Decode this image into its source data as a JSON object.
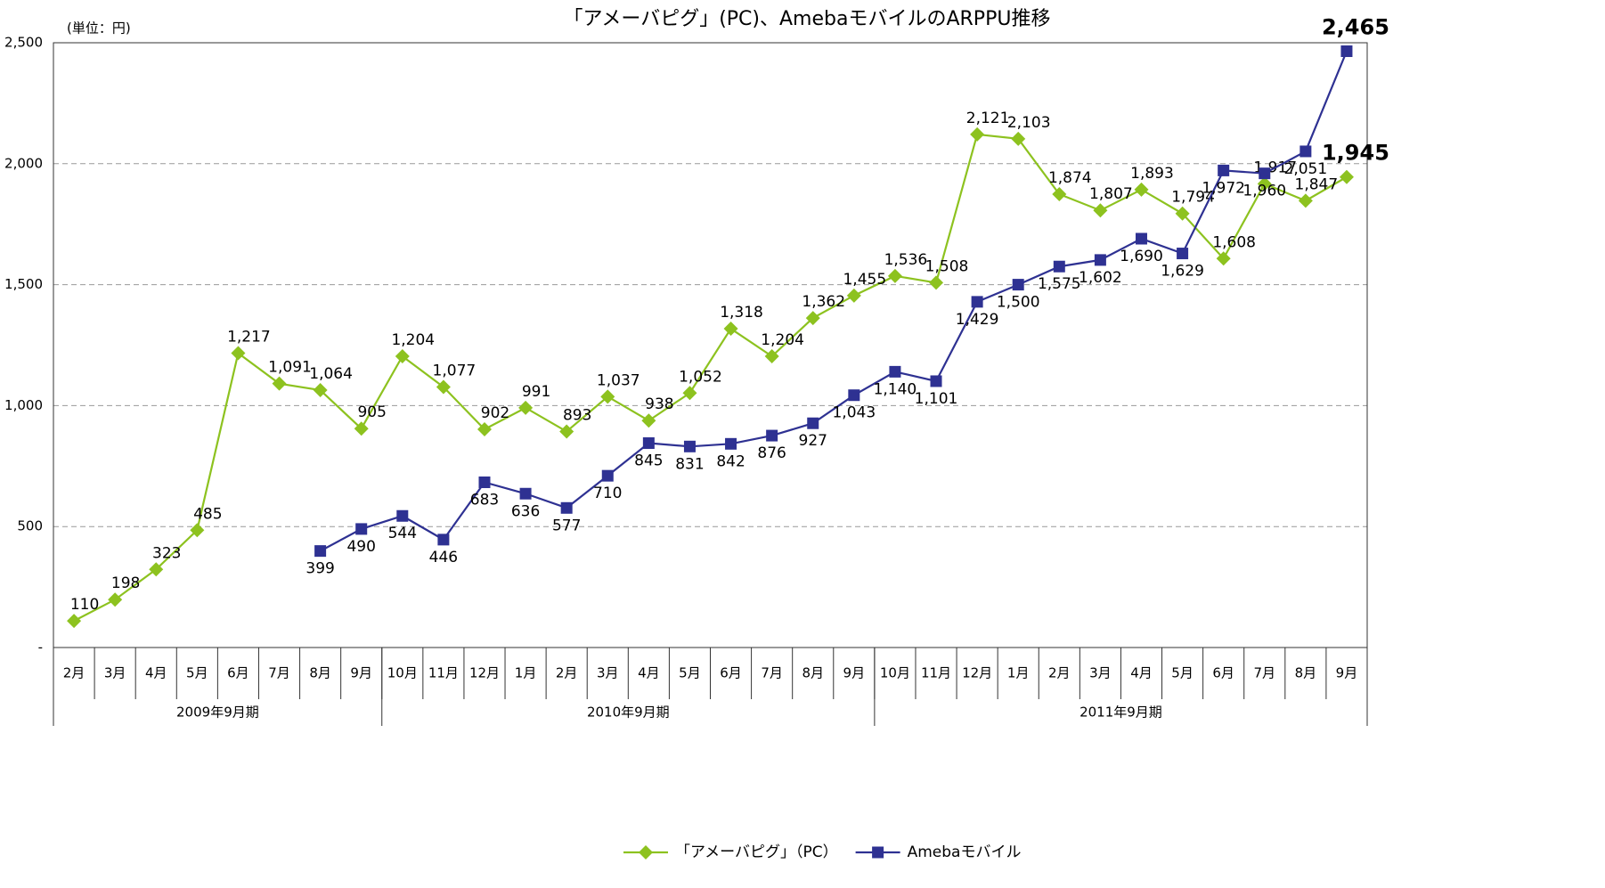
{
  "chart_data": {
    "type": "line",
    "title": "「アメーバピグ」(PC)、AmebaモバイルのARPPU推移",
    "unit_label": "(単位：円)",
    "categories": [
      "2月",
      "3月",
      "4月",
      "5月",
      "6月",
      "7月",
      "8月",
      "9月",
      "10月",
      "11月",
      "12月",
      "1月",
      "2月",
      "3月",
      "4月",
      "5月",
      "6月",
      "7月",
      "8月",
      "9月",
      "10月",
      "11月",
      "12月",
      "1月",
      "2月",
      "3月",
      "4月",
      "5月",
      "6月",
      "7月",
      "8月",
      "9月"
    ],
    "groups": [
      {
        "label": "2009年9月期",
        "count": 8
      },
      {
        "label": "2010年9月期",
        "count": 12
      },
      {
        "label": "2011年9月期",
        "count": 12
      }
    ],
    "series": [
      {
        "name": "「アメーバピグ」（PC）",
        "color": "#8dc21f",
        "marker": "diamond",
        "values": [
          110,
          198,
          323,
          485,
          1217,
          1091,
          1064,
          905,
          1204,
          1077,
          902,
          991,
          893,
          1037,
          938,
          1052,
          1318,
          1204,
          1362,
          1455,
          1536,
          1508,
          2121,
          2103,
          1874,
          1807,
          1893,
          1794,
          1608,
          1917,
          1847,
          1945
        ],
        "value_labels": [
          "110",
          "198",
          "323",
          "485",
          "1,217",
          "1,091",
          "1,064",
          "905",
          "1,204",
          "1,077",
          "902",
          "991",
          "893",
          "1,037",
          "938",
          "1,052",
          "1,318",
          "1,204",
          "1,362",
          "1,455",
          "1,536",
          "1,508",
          "2,121",
          "2,103",
          "1,874",
          "1,807",
          "1,893",
          "1,794",
          "1,608",
          "1,917",
          "1,847",
          "1,945"
        ]
      },
      {
        "name": "Amebaモバイル",
        "color": "#2e3192",
        "label_color": "#1a1adb",
        "marker": "square",
        "values": [
          null,
          null,
          null,
          null,
          null,
          null,
          399,
          490,
          544,
          446,
          683,
          636,
          577,
          710,
          845,
          831,
          842,
          876,
          927,
          1043,
          1140,
          1101,
          1429,
          1500,
          1575,
          1602,
          1690,
          1629,
          1972,
          1960,
          2051,
          2465
        ],
        "value_labels": [
          null,
          null,
          null,
          null,
          null,
          null,
          "399",
          "490",
          "544",
          "446",
          "683",
          "636",
          "577",
          "710",
          "845",
          "831",
          "842",
          "876",
          "927",
          "1,043",
          "1,140",
          "1,101",
          "1,429",
          "1,500",
          "1,575",
          "1,602",
          "1,690",
          "1,629",
          "1,972",
          "1,960",
          "2,051",
          "2,465"
        ]
      }
    ],
    "ylim": [
      0,
      2500
    ],
    "yticks": [
      {
        "value": 0,
        "label": "-"
      },
      500,
      {
        "value": 1000,
        "label": "1,000"
      },
      {
        "value": 1500,
        "label": "1,500"
      },
      {
        "value": 2000,
        "label": "2,000"
      },
      {
        "value": 2500,
        "label": "2,500"
      }
    ],
    "grid": true,
    "legend": "bottom"
  }
}
